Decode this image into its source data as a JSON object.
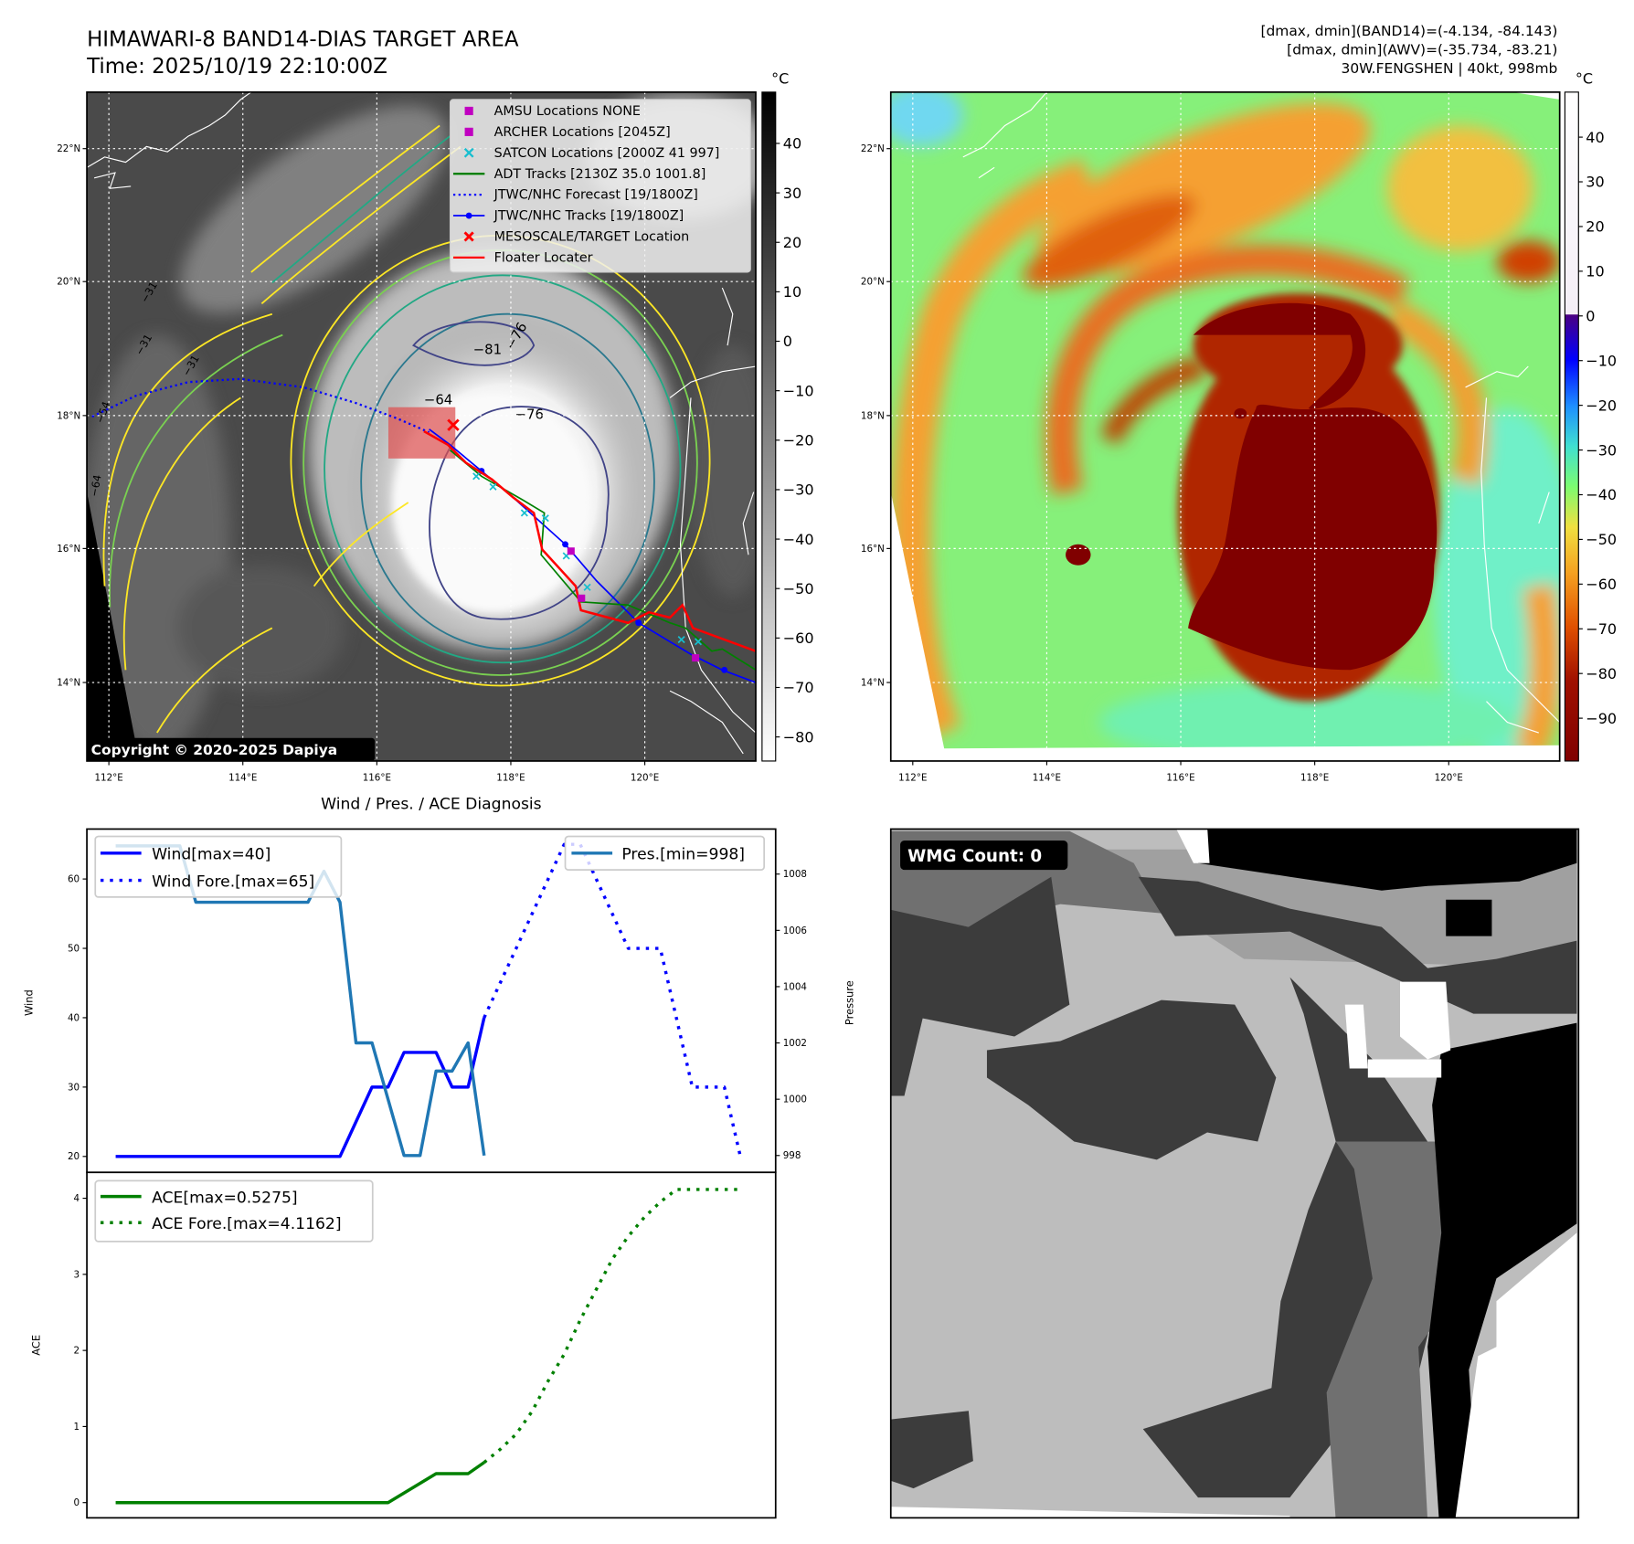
{
  "header": {
    "title": "HIMAWARI-8 BAND14-DIAS TARGET AREA",
    "time": "Time: 2025/10/19 22:10:00Z",
    "stats_band14": "[dmax, dmin](BAND14)=(-4.134, -84.143)",
    "stats_awv": "[dmax, dmin](AWV)=(-35.734, -83.21)",
    "storm_info": "30W.FENGSHEN | 40kt, 998mb"
  },
  "map_ir": {
    "unit": "°C",
    "colorbar_ticks": [
      "40",
      "30",
      "20",
      "10",
      "0",
      "−10",
      "−20",
      "−30",
      "−40",
      "−50",
      "−60",
      "−70",
      "−80"
    ],
    "lat_labels": [
      "22°N",
      "20°N",
      "18°N",
      "16°N",
      "14°N"
    ],
    "lon_labels": [
      "112°E",
      "114°E",
      "116°E",
      "118°E",
      "120°E"
    ],
    "contour_labels": [
      "−81",
      "−76",
      "−76",
      "−64",
      "−31",
      "−31",
      "−31",
      "−54",
      "−64"
    ],
    "copyright": "Copyright © 2020-2025 Dapiya",
    "legend": [
      {
        "label": "AMSU Locations NONE",
        "color": "#c000c0",
        "marker": "square"
      },
      {
        "label": "ARCHER Locations [2045Z]",
        "color": "#c000c0",
        "marker": "square"
      },
      {
        "label": "SATCON Locations [2000Z 41 997]",
        "color": "#17becf",
        "marker": "x"
      },
      {
        "label": "ADT Tracks [2130Z 35.0 1001.8]",
        "color": "#008000",
        "marker": "line"
      },
      {
        "label": "JTWC/NHC Forecast [19/1800Z]",
        "color": "#0000ff",
        "marker": "dotted"
      },
      {
        "label": "JTWC/NHC Tracks [19/1800Z]",
        "color": "#0000ff",
        "marker": "line-dot"
      },
      {
        "label": "MESOSCALE/TARGET Location",
        "color": "#ff0000",
        "marker": "x"
      },
      {
        "label": "Floater Locater",
        "color": "#ff0000",
        "marker": "line"
      }
    ]
  },
  "map_awv": {
    "unit": "°C",
    "colorbar_ticks": [
      "40",
      "30",
      "20",
      "10",
      "0",
      "−10",
      "−20",
      "−30",
      "−40",
      "−50",
      "−60",
      "−70",
      "−80",
      "−90"
    ],
    "lat_labels": [
      "22°N",
      "20°N",
      "18°N",
      "16°N",
      "14°N"
    ],
    "lon_labels": [
      "112°E",
      "114°E",
      "116°E",
      "118°E",
      "120°E"
    ]
  },
  "wmg": {
    "label": "WMG Count: 0"
  },
  "chart_data": [
    {
      "type": "line",
      "title": "Wind / Pres. / ACE Diagnosis",
      "ylabel": "Wind",
      "ylabel_right": "Pressure",
      "ylim": [
        17.7,
        67.2
      ],
      "ylim_right": [
        997.4,
        1009.6
      ],
      "yticks": [
        20,
        30,
        40,
        50,
        60
      ],
      "yticks_right": [
        998,
        1000,
        1002,
        1004,
        1006,
        1008
      ],
      "xlim": [
        -1.8,
        41.2
      ],
      "series": [
        {
          "name": "Wind[max=40]",
          "axis": "left",
          "color": "#0000ff",
          "style": "solid",
          "x": [
            0,
            14,
            16,
            17,
            18,
            20,
            21,
            22,
            23
          ],
          "values": [
            20,
            20,
            30,
            30,
            35,
            35,
            30,
            30,
            40
          ]
        },
        {
          "name": "Wind Fore.[max=65]",
          "axis": "left",
          "color": "#0000ff",
          "style": "dotted",
          "x": [
            23,
            24,
            25,
            26,
            27,
            28,
            29,
            30,
            31,
            32,
            33,
            34,
            35,
            36,
            37,
            38,
            39
          ],
          "values": [
            40,
            45,
            50,
            55,
            60,
            65,
            65,
            60,
            55,
            50,
            50,
            50,
            40,
            30,
            30,
            30,
            20
          ]
        },
        {
          "name": "Pres.[min=998]",
          "axis": "right",
          "color": "#1f77b4",
          "style": "solid",
          "x": [
            0,
            4,
            5,
            12,
            13,
            14,
            15,
            16,
            18,
            19,
            20,
            21,
            22,
            23
          ],
          "values": [
            1009,
            1009,
            1007,
            1007,
            1008.1,
            1007,
            1002,
            1002,
            998,
            998,
            1001,
            1001,
            1002,
            998
          ]
        }
      ]
    },
    {
      "type": "line",
      "title": "",
      "ylabel": "ACE",
      "ylim": [
        -0.2,
        4.34
      ],
      "yticks": [
        0,
        1,
        2,
        3,
        4
      ],
      "xlim": [
        -1.8,
        41.2
      ],
      "series": [
        {
          "name": "ACE[max=0.5275]",
          "color": "#008000",
          "style": "solid",
          "x": [
            0,
            17,
            20,
            22,
            23
          ],
          "values": [
            0,
            0,
            0.38,
            0.38,
            0.5275
          ]
        },
        {
          "name": "ACE Fore.[max=4.1162]",
          "color": "#008000",
          "style": "dotted",
          "x": [
            23,
            24,
            25,
            26,
            27,
            28,
            29,
            30,
            31,
            32,
            33,
            34,
            35,
            36,
            37,
            38,
            39
          ],
          "values": [
            0.5275,
            0.7,
            0.9,
            1.2,
            1.6,
            1.95,
            2.4,
            2.8,
            3.2,
            3.5,
            3.75,
            3.95,
            4.1162,
            4.1162,
            4.1162,
            4.1162,
            4.1162
          ]
        }
      ]
    }
  ]
}
